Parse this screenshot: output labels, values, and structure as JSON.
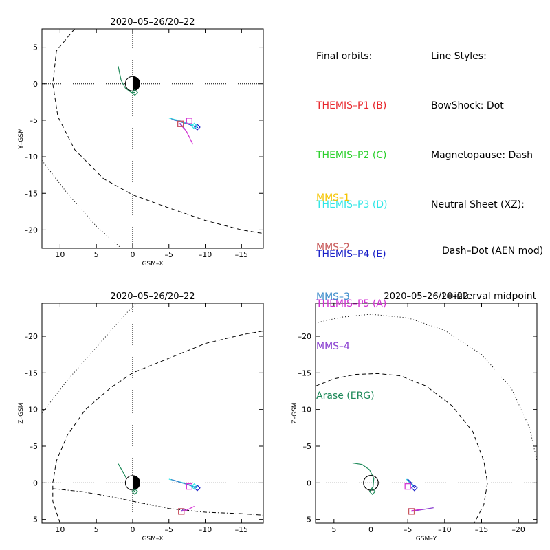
{
  "colors": {
    "themis_p1": "#e8262b",
    "themis_p2": "#2bd02b",
    "themis_p3": "#2fe6e6",
    "themis_p4": "#1a20c8",
    "themis_p5": "#d22bd2",
    "mms1": "#f5c400",
    "mms2": "#c85a5a",
    "mms3": "#3d8ccb",
    "mms4": "#8a3fd0",
    "arase": "#1f8a5a",
    "axes": "#000000"
  },
  "legend": {
    "final_orbits_title": "Final orbits:",
    "themis": [
      {
        "label": "THEMIS–P1 (B)",
        "color": "#e8262b"
      },
      {
        "label": "THEMIS–P2 (C)",
        "color": "#2bd02b"
      },
      {
        "label": "THEMIS–P3 (D)",
        "color": "#2fe6e6"
      },
      {
        "label": "THEMIS–P4 (E)",
        "color": "#1a20c8"
      },
      {
        "label": "THEMIS–P5 (A)",
        "color": "#d22bd2"
      }
    ],
    "line_styles_title": "Line Styles:",
    "line_styles": [
      "BowShock: Dot",
      "Magnetopause: Dash",
      "Neutral Sheet (XZ):",
      "Dash–Dot (AEN mod)",
      "t=interval midpoint"
    ],
    "missions": [
      {
        "label": "MMS–1",
        "color": "#f5c400"
      },
      {
        "label": "MMS–2",
        "color": "#c85a5a"
      },
      {
        "label": "MMS–3",
        "color": "#3d8ccb"
      },
      {
        "label": "MMS–4",
        "color": "#8a3fd0"
      },
      {
        "label": "Arase (ERG)",
        "color": "#1f8a5a"
      }
    ]
  },
  "chart_data": [
    {
      "type": "line",
      "id": "xy",
      "title": "2020–05–26/20–22",
      "xlabel": "GSM–X",
      "ylabel": "Y–GSM",
      "xlim": [
        12.5,
        -18
      ],
      "ylim": [
        7.5,
        -22.5
      ],
      "xticks": [
        10,
        5,
        0,
        -5,
        -10,
        -15
      ],
      "xtick_labels": [
        "10",
        "5",
        "0",
        "–5",
        "–10",
        "–15"
      ],
      "yticks": [
        5,
        0,
        -5,
        -10,
        -15,
        -20
      ],
      "ytick_labels": [
        "5",
        "0",
        "–5",
        "–10",
        "–15",
        "–20"
      ],
      "earth": true,
      "series": [
        {
          "style": "dot",
          "points": [
            [
              12.5,
              -10.5
            ],
            [
              9,
              -15
            ],
            [
              5,
              -19.5
            ],
            [
              1,
              -23
            ]
          ]
        },
        {
          "style": "dash",
          "points": [
            [
              8,
              7.5
            ],
            [
              10.5,
              4.5
            ],
            [
              11,
              0
            ],
            [
              10.3,
              -4.5
            ],
            [
              8,
              -9
            ],
            [
              4,
              -13
            ],
            [
              0,
              -15.2
            ],
            [
              -5,
              -17
            ],
            [
              -10,
              -18.7
            ],
            [
              -15,
              -20
            ],
            [
              -18,
              -20.5
            ]
          ]
        },
        {
          "style": "solid",
          "color": "#1f8a5a",
          "points": [
            [
              2,
              2.4
            ],
            [
              1.6,
              0.5
            ],
            [
              1,
              -0.6
            ],
            [
              0.2,
              -1.2
            ],
            [
              -0.3,
              -1.2
            ]
          ]
        },
        {
          "style": "solid",
          "color": "#d22bd2",
          "points": [
            [
              -6.5,
              -5.5
            ],
            [
              -7.4,
              -6.5
            ],
            [
              -8.3,
              -8.3
            ]
          ]
        },
        {
          "style": "solid",
          "color": "#8a3fd0",
          "points": [
            [
              -6.5,
              -5.4
            ],
            [
              -7.2,
              -6.2
            ]
          ]
        },
        {
          "style": "solid",
          "color": "#1a20c8",
          "points": [
            [
              -5.5,
              -4.9
            ],
            [
              -7.5,
              -5.5
            ],
            [
              -9,
              -6
            ]
          ]
        },
        {
          "style": "solid",
          "color": "#2fe6e6",
          "points": [
            [
              -5,
              -4.7
            ],
            [
              -7,
              -5.2
            ],
            [
              -8.5,
              -5.8
            ]
          ]
        },
        {
          "style": "solid",
          "color": "#3d8ccb",
          "points": [
            [
              -5.3,
              -4.8
            ],
            [
              -7.8,
              -5.6
            ]
          ]
        }
      ],
      "markers": [
        {
          "shape": "square",
          "color": "#d22bd2",
          "x": -6.6,
          "y": -5.5
        },
        {
          "shape": "square",
          "color": "#c85a5a",
          "x": -6.6,
          "y": -5.5
        },
        {
          "shape": "square",
          "color": "#d22bd2",
          "x": -7.8,
          "y": -5.1
        },
        {
          "shape": "diamond",
          "color": "#1a20c8",
          "x": -8.9,
          "y": -5.95
        },
        {
          "shape": "diamond",
          "color": "#2fe6e6",
          "x": -8.5,
          "y": -5.8
        },
        {
          "shape": "diamond",
          "color": "#1f8a5a",
          "x": -0.3,
          "y": -1.2
        }
      ]
    },
    {
      "type": "line",
      "id": "xz",
      "title": "2020–05–26/20–22",
      "xlabel": "GSM–X",
      "ylabel": "Z–GSM",
      "xlim": [
        12.5,
        -18
      ],
      "ylim": [
        -24.5,
        5.5
      ],
      "xticks": [
        10,
        5,
        0,
        -5,
        -10,
        -15
      ],
      "xtick_labels": [
        "10",
        "5",
        "0",
        "–5",
        "–10",
        "–15"
      ],
      "yticks": [
        5,
        0,
        -5,
        -10,
        -15,
        -20
      ],
      "ytick_labels": [
        "5",
        "0",
        "–5",
        "–10",
        "–15",
        "–20"
      ],
      "earth": true,
      "series": [
        {
          "style": "dot",
          "points": [
            [
              12.5,
              -9.5
            ],
            [
              9,
              -14
            ],
            [
              5,
              -18.5
            ],
            [
              1,
              -23
            ],
            [
              -0.5,
              -24.5
            ]
          ]
        },
        {
          "style": "dash",
          "points": [
            [
              10,
              5.5
            ],
            [
              11,
              2.5
            ],
            [
              11,
              0
            ],
            [
              10.5,
              -3
            ],
            [
              9,
              -6.5
            ],
            [
              6.5,
              -10
            ],
            [
              3,
              -13
            ],
            [
              0,
              -15
            ],
            [
              -5,
              -17
            ],
            [
              -10,
              -19
            ],
            [
              -15,
              -20.2
            ],
            [
              -18,
              -20.7
            ]
          ]
        },
        {
          "style": "dashdot",
          "points": [
            [
              11,
              0.8
            ],
            [
              7,
              1.2
            ],
            [
              3,
              1.9
            ],
            [
              -2,
              2.9
            ],
            [
              -5,
              3.5
            ],
            [
              -10,
              4
            ],
            [
              -15,
              4.2
            ],
            [
              -18,
              4.4
            ]
          ]
        },
        {
          "style": "solid",
          "color": "#1f8a5a",
          "points": [
            [
              2,
              -2.6
            ],
            [
              1.4,
              -1.6
            ],
            [
              0.8,
              -0.5
            ],
            [
              0.2,
              0.7
            ],
            [
              -0.3,
              1.2
            ]
          ]
        },
        {
          "style": "solid",
          "color": "#d22bd2",
          "points": [
            [
              -6.7,
              3.9
            ],
            [
              -7.5,
              3.7
            ],
            [
              -8.5,
              3.2
            ]
          ]
        },
        {
          "style": "solid",
          "color": "#8a3fd0",
          "points": [
            [
              -6.7,
              3.8
            ],
            [
              -7.3,
              3.6
            ]
          ]
        },
        {
          "style": "solid",
          "color": "#1a20c8",
          "points": [
            [
              -5.5,
              -0.4
            ],
            [
              -7.5,
              0.2
            ],
            [
              -8.9,
              0.7
            ]
          ]
        },
        {
          "style": "solid",
          "color": "#2fe6e6",
          "points": [
            [
              -5,
              -0.5
            ],
            [
              -7,
              0
            ],
            [
              -8.5,
              0.5
            ]
          ]
        },
        {
          "style": "solid",
          "color": "#3d8ccb",
          "points": [
            [
              -5.3,
              -0.45
            ],
            [
              -7.8,
              0.3
            ]
          ]
        }
      ],
      "markers": [
        {
          "shape": "square",
          "color": "#d22bd2",
          "x": -6.7,
          "y": 3.9
        },
        {
          "shape": "square",
          "color": "#c85a5a",
          "x": -6.7,
          "y": 3.9
        },
        {
          "shape": "square",
          "color": "#d22bd2",
          "x": -7.8,
          "y": 0.5
        },
        {
          "shape": "diamond",
          "color": "#1a20c8",
          "x": -8.9,
          "y": 0.7
        },
        {
          "shape": "diamond",
          "color": "#2fe6e6",
          "x": -8.5,
          "y": 0.5
        },
        {
          "shape": "diamond",
          "color": "#1f8a5a",
          "x": -0.3,
          "y": 1.2
        }
      ]
    },
    {
      "type": "line",
      "id": "yz",
      "title": "2020–05–26/20–22",
      "xlabel": "GSM–Y",
      "ylabel": "Z–GSM",
      "xlim": [
        7.5,
        -22.5
      ],
      "ylim": [
        -24.5,
        5.5
      ],
      "xticks": [
        5,
        0,
        -5,
        -10,
        -15,
        -20
      ],
      "xtick_labels": [
        "5",
        "0",
        "–5",
        "–10",
        "–15",
        "–20"
      ],
      "yticks": [
        5,
        0,
        -5,
        -10,
        -15,
        -20
      ],
      "ytick_labels": [
        "5",
        "0",
        "–5",
        "–10",
        "–15",
        "–20"
      ],
      "earth": false,
      "series": [
        {
          "style": "dot",
          "points": [
            [
              7.5,
              -21.8
            ],
            [
              4,
              -22.6
            ],
            [
              0,
              -23
            ],
            [
              -5,
              -22.5
            ],
            [
              -10,
              -20.8
            ],
            [
              -15,
              -17.5
            ],
            [
              -19,
              -13
            ],
            [
              -21.5,
              -7.5
            ],
            [
              -22.5,
              -3
            ]
          ]
        },
        {
          "style": "dash",
          "points": [
            [
              7.5,
              -13.2
            ],
            [
              5,
              -14.2
            ],
            [
              2,
              -14.8
            ],
            [
              -1,
              -14.9
            ],
            [
              -4,
              -14.6
            ],
            [
              -7.5,
              -13.2
            ],
            [
              -11,
              -10.5
            ],
            [
              -13.8,
              -7
            ],
            [
              -15.3,
              -3
            ],
            [
              -15.8,
              0
            ],
            [
              -15.3,
              3
            ],
            [
              -14,
              5.5
            ]
          ]
        },
        {
          "style": "solid",
          "color": "#1f8a5a",
          "points": [
            [
              2.5,
              -2.7
            ],
            [
              1.2,
              -2.5
            ],
            [
              0.2,
              -1.8
            ],
            [
              -0.4,
              -0.6
            ],
            [
              -0.3,
              0.5
            ],
            [
              0.2,
              1.2
            ]
          ]
        },
        {
          "style": "solid",
          "color": "#8a3fd0",
          "points": [
            [
              -5.5,
              3.9
            ],
            [
              -8.5,
              3.4
            ]
          ]
        },
        {
          "style": "solid",
          "color": "#d22bd2",
          "points": [
            [
              -5.5,
              3.8
            ],
            [
              -7,
              3.6
            ]
          ]
        },
        {
          "style": "solid",
          "color": "#1a20c8",
          "points": [
            [
              -5,
              -0.5
            ],
            [
              -5.5,
              0
            ],
            [
              -5.9,
              0.7
            ]
          ]
        },
        {
          "style": "solid",
          "color": "#2fe6e6",
          "points": [
            [
              -4.8,
              -0.5
            ],
            [
              -5.3,
              0
            ],
            [
              -5.8,
              0.5
            ]
          ]
        },
        {
          "style": "solid",
          "color": "#3d8ccb",
          "points": [
            [
              -4.9,
              -0.5
            ],
            [
              -5.6,
              0.3
            ]
          ]
        }
      ],
      "markers": [
        {
          "shape": "square",
          "color": "#d22bd2",
          "x": -5.5,
          "y": 3.9
        },
        {
          "shape": "square",
          "color": "#c85a5a",
          "x": -5.5,
          "y": 3.9
        },
        {
          "shape": "square",
          "color": "#d22bd2",
          "x": -5,
          "y": 0.5
        },
        {
          "shape": "diamond",
          "color": "#1a20c8",
          "x": -5.9,
          "y": 0.7
        },
        {
          "shape": "diamond",
          "color": "#1f8a5a",
          "x": -0.2,
          "y": 1.2
        }
      ]
    }
  ]
}
